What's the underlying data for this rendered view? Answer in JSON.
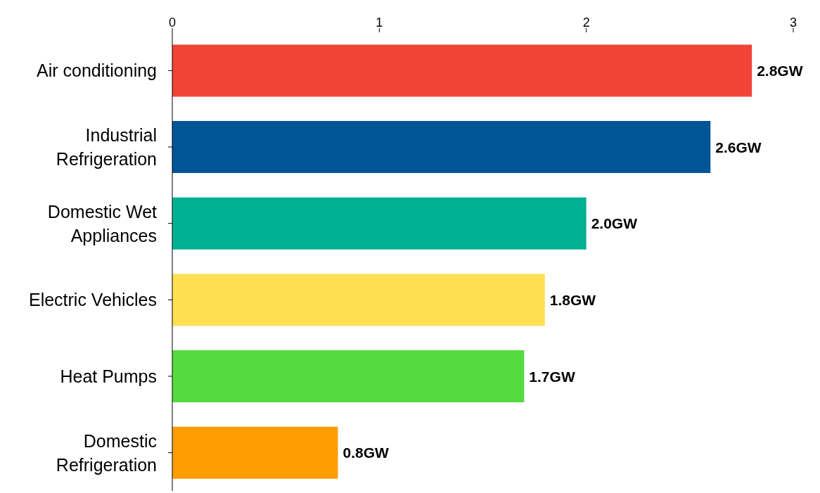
{
  "chart_data": {
    "type": "bar",
    "orientation": "horizontal",
    "categories": [
      "Air conditioning",
      "Industrial Refrigeration",
      "Domestic Wet Appliances",
      "Electric Vehicles",
      "Heat Pumps",
      "Domestic Refrigeration"
    ],
    "values": [
      2.8,
      2.6,
      2.0,
      1.8,
      1.7,
      0.8
    ],
    "colors": [
      "#f04438",
      "#005596",
      "#00b092",
      "#ffe053",
      "#55db3f",
      "#ff9d00"
    ],
    "value_labels": [
      "2.8GW",
      "2.6GW",
      "2.0GW",
      "1.8GW",
      "1.7GW",
      "0.8GW"
    ],
    "xlim": [
      0,
      3
    ],
    "xticks": [
      0,
      1,
      2,
      3
    ]
  }
}
